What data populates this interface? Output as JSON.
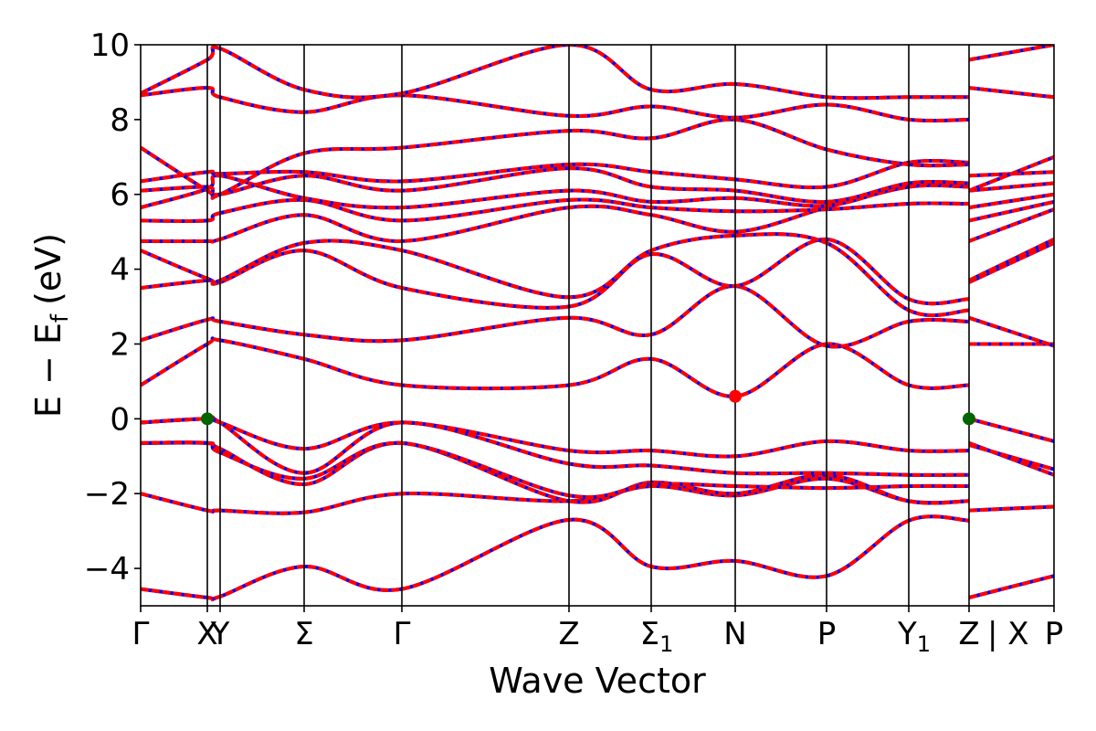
{
  "chart_data": {
    "type": "line",
    "title": "",
    "xlabel": "Wave Vector",
    "ylabel_main": "E − E",
    "ylabel_sub": "f",
    "ylabel_unit": "(eV)",
    "ylim": [
      -5,
      10
    ],
    "yticks": [
      -4,
      -2,
      0,
      2,
      4,
      6,
      8,
      10
    ],
    "ytick_labels": [
      "−4",
      "−2",
      "0",
      "2",
      "4",
      "6",
      "8",
      "10"
    ],
    "xlim": [
      0,
      10
    ],
    "kpoints": [
      {
        "x": 0.0,
        "label": "Γ"
      },
      {
        "x": 0.73,
        "label": "X"
      },
      {
        "x": 0.87,
        "label": "Y"
      },
      {
        "x": 1.79,
        "label": "Σ"
      },
      {
        "x": 2.86,
        "label": "Γ"
      },
      {
        "x": 4.69,
        "label": "Z"
      },
      {
        "x": 5.59,
        "label": "Σ",
        "sub": "1"
      },
      {
        "x": 6.51,
        "label": "N"
      },
      {
        "x": 7.51,
        "label": "P"
      },
      {
        "x": 8.41,
        "label": "Y",
        "sub": "1"
      },
      {
        "x": 9.07,
        "label": "Z"
      },
      {
        "x": 9.07,
        "label": "| X",
        "right": true
      },
      {
        "x": 10.0,
        "label": "P"
      }
    ],
    "band_colors": {
      "primary": "#ff0000",
      "secondary": "#0000ff"
    },
    "markers": [
      {
        "x": 0.73,
        "y": 0.0,
        "color": "#006400"
      },
      {
        "x": 6.51,
        "y": 0.6,
        "color": "#ff0000"
      },
      {
        "x": 9.07,
        "y": 0.0,
        "color": "#006400"
      }
    ],
    "series": [
      {
        "x": [
          0,
          0.73,
          0.87,
          1.79,
          2.86,
          4.69,
          5.59,
          6.51,
          7.51,
          8.41,
          9.07
        ],
        "y": [
          -4.55,
          -4.78,
          -4.75,
          -3.95,
          -4.55,
          -2.7,
          -3.95,
          -3.8,
          -4.2,
          -2.72,
          -2.72
        ]
      },
      {
        "x": [
          9.07,
          10
        ],
        "y": [
          -4.78,
          -4.2
        ]
      },
      {
        "x": [
          0,
          0.73,
          0.87,
          1.79,
          2.86,
          4.69,
          5.59,
          6.51,
          7.51,
          8.41,
          9.07
        ],
        "y": [
          -2.0,
          -2.45,
          -2.45,
          -2.5,
          -2.0,
          -2.2,
          -1.8,
          -2.05,
          -1.6,
          -2.2,
          -2.2
        ]
      },
      {
        "x": [
          9.07,
          10
        ],
        "y": [
          -2.45,
          -2.35
        ]
      },
      {
        "x": [
          0,
          0.73,
          0.87,
          1.79,
          2.86,
          4.69,
          5.59,
          6.51,
          7.51,
          8.41,
          9.07
        ],
        "y": [
          -0.65,
          -0.65,
          -0.8,
          -1.75,
          -0.65,
          -2.2,
          -1.7,
          -2.0,
          -1.5,
          -2.2,
          -2.2
        ]
      },
      {
        "x": [
          9.07,
          10
        ],
        "y": [
          -0.65,
          -1.5
        ]
      },
      {
        "x": [
          0,
          0.73,
          0.87,
          1.79,
          2.86,
          4.69,
          5.59,
          6.51,
          7.51,
          8.41,
          9.07
        ],
        "y": [
          -0.65,
          -0.65,
          -0.9,
          -1.6,
          -0.65,
          -2.05,
          -1.75,
          -1.8,
          -1.85,
          -1.8,
          -1.8
        ]
      },
      {
        "x": [
          9.07,
          10
        ],
        "y": [
          -0.7,
          -1.35
        ]
      },
      {
        "x": [
          0,
          0.73,
          0.87,
          1.79,
          2.86,
          4.69,
          5.59,
          6.51,
          7.51,
          8.41,
          9.07
        ],
        "y": [
          -0.1,
          0.0,
          -0.1,
          -1.45,
          -0.1,
          -1.2,
          -1.25,
          -1.45,
          -1.45,
          -1.5,
          -1.5
        ]
      },
      {
        "x": [
          9.07,
          10
        ],
        "y": [
          0.0,
          -0.6
        ]
      },
      {
        "x": [
          0,
          0.73,
          0.87,
          1.79,
          2.86,
          4.69,
          5.59,
          6.51,
          7.51,
          8.41,
          9.07
        ],
        "y": [
          -0.1,
          0.0,
          -0.1,
          -0.8,
          -0.1,
          -0.85,
          -0.85,
          -1.0,
          -0.6,
          -0.85,
          -0.85
        ]
      },
      {
        "x": [
          0,
          0.73,
          0.87,
          1.79,
          2.86,
          4.69,
          5.59,
          6.51,
          7.51,
          8.41,
          9.07
        ],
        "y": [
          0.9,
          2.0,
          2.1,
          1.6,
          0.9,
          0.9,
          1.6,
          0.6,
          2.0,
          0.9,
          0.9
        ]
      },
      {
        "x": [
          9.07,
          10
        ],
        "y": [
          2.0,
          2.0
        ]
      },
      {
        "x": [
          0,
          0.73,
          0.87,
          1.79,
          2.86,
          4.69,
          5.59,
          6.51,
          7.51,
          8.41,
          9.07
        ],
        "y": [
          2.1,
          2.65,
          2.6,
          2.25,
          2.1,
          2.7,
          2.25,
          3.55,
          1.95,
          2.6,
          2.6
        ]
      },
      {
        "x": [
          9.07,
          10
        ],
        "y": [
          2.7,
          1.95
        ]
      },
      {
        "x": [
          0,
          0.73,
          0.87,
          1.79,
          2.86,
          4.69,
          5.59,
          6.51,
          7.51,
          8.41,
          9.07
        ],
        "y": [
          3.5,
          3.7,
          3.65,
          4.5,
          3.5,
          3.0,
          4.4,
          3.55,
          4.8,
          3.2,
          3.2
        ]
      },
      {
        "x": [
          9.07,
          10
        ],
        "y": [
          3.65,
          4.7
        ]
      },
      {
        "x": [
          0,
          0.73,
          0.87,
          1.79,
          2.86,
          4.69,
          5.59,
          6.51,
          7.51,
          8.41,
          9.07
        ],
        "y": [
          4.5,
          3.75,
          3.7,
          4.7,
          4.5,
          3.25,
          4.5,
          4.9,
          4.7,
          2.9,
          2.9
        ]
      },
      {
        "x": [
          9.07,
          10
        ],
        "y": [
          3.7,
          4.8
        ]
      },
      {
        "x": [
          0,
          0.73,
          0.87,
          1.79,
          2.86,
          4.69,
          5.59,
          6.51,
          7.51,
          8.41,
          9.07
        ],
        "y": [
          4.75,
          4.75,
          4.8,
          5.45,
          4.75,
          5.65,
          5.45,
          5.0,
          5.65,
          6.2,
          6.2
        ]
      },
      {
        "x": [
          9.07,
          10
        ],
        "y": [
          4.75,
          5.6
        ]
      },
      {
        "x": [
          0,
          0.73,
          0.87,
          1.79,
          2.86,
          4.69,
          5.59,
          6.51,
          7.51,
          8.41,
          9.07
        ],
        "y": [
          5.3,
          5.3,
          5.5,
          5.85,
          5.3,
          5.85,
          5.65,
          5.55,
          5.6,
          5.75,
          5.75
        ]
      },
      {
        "x": [
          9.07,
          10
        ],
        "y": [
          5.3,
          5.8
        ]
      },
      {
        "x": [
          0,
          0.73,
          0.87,
          1.79,
          2.86,
          4.69,
          5.59,
          6.51,
          7.51,
          8.41,
          9.07
        ],
        "y": [
          5.65,
          6.15,
          6.5,
          5.9,
          5.65,
          6.1,
          5.8,
          5.9,
          5.7,
          6.25,
          6.25
        ]
      },
      {
        "x": [
          9.07,
          10
        ],
        "y": [
          5.65,
          6.0
        ]
      },
      {
        "x": [
          0,
          0.73,
          0.87,
          1.79,
          2.86,
          4.69,
          5.59,
          6.51,
          7.51,
          8.41,
          9.07
        ],
        "y": [
          6.1,
          6.2,
          6.0,
          6.5,
          6.1,
          6.7,
          6.2,
          6.1,
          5.8,
          6.3,
          6.3
        ]
      },
      {
        "x": [
          9.07,
          10
        ],
        "y": [
          6.1,
          6.3
        ]
      },
      {
        "x": [
          0,
          0.73,
          0.87,
          1.79,
          2.86,
          4.69,
          5.59,
          6.51,
          7.51,
          8.41,
          9.07
        ],
        "y": [
          6.35,
          6.6,
          6.55,
          6.6,
          6.35,
          6.8,
          6.6,
          6.4,
          6.2,
          6.85,
          6.85
        ]
      },
      {
        "x": [
          9.07,
          10
        ],
        "y": [
          6.5,
          6.6
        ]
      },
      {
        "x": [
          0,
          0.73,
          0.87,
          1.79,
          2.86,
          4.69,
          5.59,
          6.51,
          7.51,
          8.41,
          9.07
        ],
        "y": [
          7.25,
          6.1,
          6.0,
          7.1,
          7.25,
          7.7,
          7.5,
          8.0,
          7.2,
          6.8,
          6.8
        ]
      },
      {
        "x": [
          9.07,
          10
        ],
        "y": [
          6.1,
          7.0
        ]
      },
      {
        "x": [
          0,
          0.73,
          0.87,
          1.79,
          2.86,
          4.69,
          5.59,
          6.51,
          7.51,
          8.41,
          9.07
        ],
        "y": [
          8.65,
          8.85,
          8.6,
          8.2,
          8.65,
          8.1,
          8.35,
          8.05,
          8.4,
          8.0,
          8.0
        ]
      },
      {
        "x": [
          9.07,
          10
        ],
        "y": [
          8.85,
          8.6
        ]
      },
      {
        "x": [
          0,
          0.73,
          0.87,
          1.79,
          2.86,
          4.69,
          5.59,
          6.51,
          7.51,
          8.41,
          9.07
        ],
        "y": [
          8.7,
          9.6,
          9.9,
          8.8,
          8.7,
          10.0,
          8.8,
          8.95,
          8.6,
          8.6,
          8.6
        ]
      },
      {
        "x": [
          9.07,
          10
        ],
        "y": [
          9.6,
          10.0
        ]
      }
    ]
  }
}
